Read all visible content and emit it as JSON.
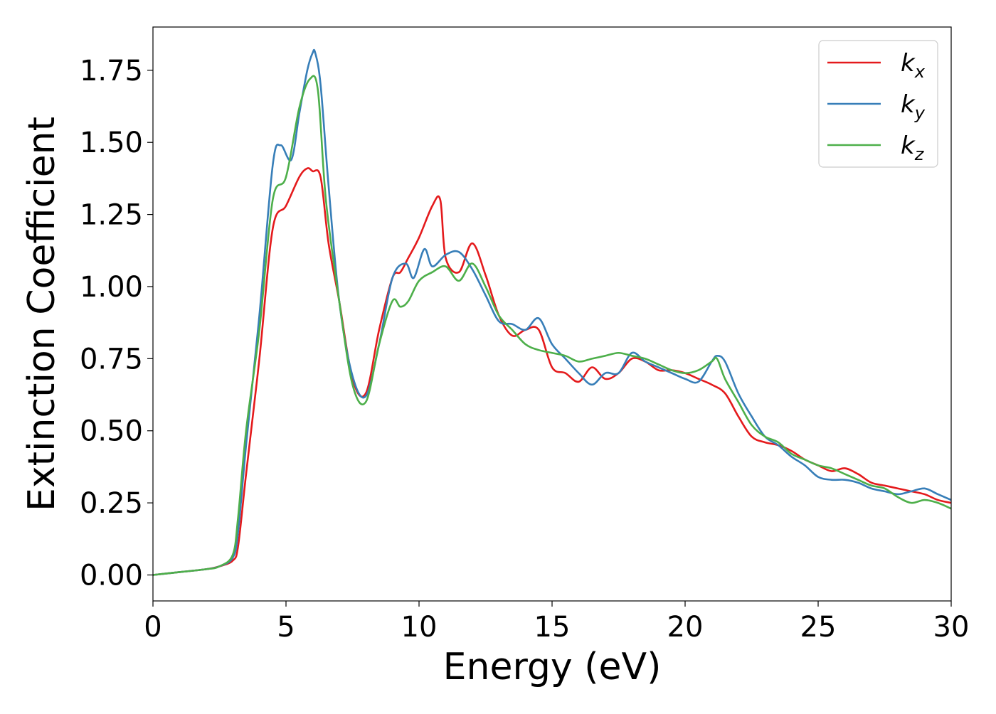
{
  "chart_data": {
    "type": "line",
    "title": "",
    "xlabel": "Energy (eV)",
    "ylabel": "Extinction Coefficient",
    "xlim": [
      0,
      30
    ],
    "ylim": [
      -0.09,
      1.9
    ],
    "xticks": [
      0,
      5,
      10,
      15,
      20,
      25,
      30
    ],
    "xtick_labels": [
      "0",
      "5",
      "10",
      "15",
      "20",
      "25",
      "30"
    ],
    "yticks": [
      0,
      0.25,
      0.5,
      0.75,
      1.0,
      1.25,
      1.5,
      1.75
    ],
    "ytick_labels": [
      "0.00",
      "0.25",
      "0.50",
      "0.75",
      "1.00",
      "1.25",
      "1.50",
      "1.75"
    ],
    "grid": false,
    "legend_position": "top-right",
    "series": [
      {
        "name": "k",
        "subscript": "x",
        "color": "#e41a1c",
        "x": [
          0,
          1,
          2,
          2.5,
          3,
          3.2,
          3.5,
          4,
          4.5,
          5,
          5.5,
          5.8,
          6,
          6.3,
          6.6,
          7,
          7.5,
          8,
          8.5,
          9,
          9.3,
          9.6,
          10,
          10.5,
          10.8,
          11,
          11.5,
          12,
          12.5,
          13,
          13.5,
          14,
          14.5,
          15,
          15.5,
          16,
          16.5,
          17,
          17.5,
          18,
          18.5,
          19,
          19.5,
          20,
          20.5,
          21,
          21.5,
          22,
          22.5,
          23,
          23.5,
          24,
          24.5,
          25,
          25.5,
          26,
          26.5,
          27,
          27.5,
          28,
          28.5,
          29,
          29.5,
          30
        ],
        "y": [
          0,
          0.01,
          0.02,
          0.03,
          0.05,
          0.1,
          0.35,
          0.75,
          1.2,
          1.28,
          1.38,
          1.41,
          1.4,
          1.38,
          1.15,
          0.95,
          0.68,
          0.63,
          0.85,
          1.03,
          1.05,
          1.1,
          1.17,
          1.28,
          1.3,
          1.1,
          1.05,
          1.15,
          1.04,
          0.9,
          0.83,
          0.85,
          0.85,
          0.72,
          0.7,
          0.67,
          0.72,
          0.68,
          0.7,
          0.75,
          0.74,
          0.71,
          0.71,
          0.7,
          0.68,
          0.66,
          0.63,
          0.55,
          0.48,
          0.46,
          0.45,
          0.43,
          0.4,
          0.38,
          0.36,
          0.37,
          0.35,
          0.32,
          0.31,
          0.3,
          0.29,
          0.28,
          0.26,
          0.25
        ]
      },
      {
        "name": "k",
        "subscript": "y",
        "color": "#377eb8",
        "x": [
          0,
          1,
          2,
          2.5,
          3,
          3.2,
          3.5,
          4,
          4.5,
          4.8,
          5.2,
          5.5,
          5.8,
          6,
          6.1,
          6.3,
          6.6,
          7,
          7.5,
          8,
          8.5,
          9,
          9.5,
          9.8,
          10.2,
          10.5,
          11,
          11.5,
          12,
          12.5,
          13,
          13.5,
          14,
          14.5,
          15,
          15.5,
          16,
          16.5,
          17,
          17.5,
          18,
          18.5,
          19,
          19.5,
          20,
          20.5,
          21,
          21.2,
          21.5,
          22,
          22.5,
          23,
          23.5,
          24,
          24.5,
          25,
          25.5,
          26,
          26.5,
          27,
          27.5,
          28,
          28.5,
          29,
          29.5,
          30
        ],
        "y": [
          0,
          0.01,
          0.02,
          0.03,
          0.06,
          0.15,
          0.45,
          0.9,
          1.42,
          1.49,
          1.44,
          1.6,
          1.75,
          1.81,
          1.81,
          1.7,
          1.35,
          0.95,
          0.69,
          0.62,
          0.8,
          1.03,
          1.08,
          1.03,
          1.13,
          1.07,
          1.11,
          1.12,
          1.06,
          0.97,
          0.88,
          0.87,
          0.85,
          0.89,
          0.8,
          0.75,
          0.7,
          0.66,
          0.7,
          0.7,
          0.77,
          0.74,
          0.72,
          0.7,
          0.68,
          0.67,
          0.74,
          0.76,
          0.74,
          0.63,
          0.55,
          0.48,
          0.45,
          0.41,
          0.38,
          0.34,
          0.33,
          0.33,
          0.32,
          0.3,
          0.29,
          0.28,
          0.29,
          0.3,
          0.28,
          0.26
        ]
      },
      {
        "name": "k",
        "subscript": "z",
        "color": "#4daf4a",
        "x": [
          0,
          1,
          2,
          2.5,
          3,
          3.2,
          3.5,
          4,
          4.5,
          5,
          5.5,
          5.9,
          6.2,
          6.5,
          7,
          7.5,
          8,
          8.5,
          9,
          9.3,
          9.6,
          10,
          10.5,
          11,
          11.5,
          12,
          12.5,
          13,
          13.5,
          14,
          14.5,
          15,
          15.5,
          16,
          16.5,
          17,
          17.5,
          18,
          18.5,
          19,
          19.5,
          20,
          20.5,
          21,
          21.2,
          21.5,
          22,
          22.5,
          23,
          23.5,
          24,
          24.5,
          25,
          25.5,
          26,
          26.5,
          27,
          27.5,
          28,
          28.5,
          29,
          29.5,
          30
        ],
        "y": [
          0,
          0.01,
          0.02,
          0.03,
          0.07,
          0.2,
          0.5,
          0.85,
          1.3,
          1.38,
          1.62,
          1.72,
          1.68,
          1.3,
          0.95,
          0.66,
          0.6,
          0.8,
          0.95,
          0.93,
          0.95,
          1.02,
          1.05,
          1.07,
          1.02,
          1.08,
          1.0,
          0.9,
          0.85,
          0.8,
          0.78,
          0.77,
          0.76,
          0.74,
          0.75,
          0.76,
          0.77,
          0.76,
          0.75,
          0.73,
          0.71,
          0.7,
          0.71,
          0.74,
          0.75,
          0.68,
          0.6,
          0.52,
          0.48,
          0.46,
          0.42,
          0.4,
          0.38,
          0.37,
          0.35,
          0.33,
          0.31,
          0.3,
          0.27,
          0.25,
          0.26,
          0.25,
          0.23
        ]
      }
    ]
  }
}
